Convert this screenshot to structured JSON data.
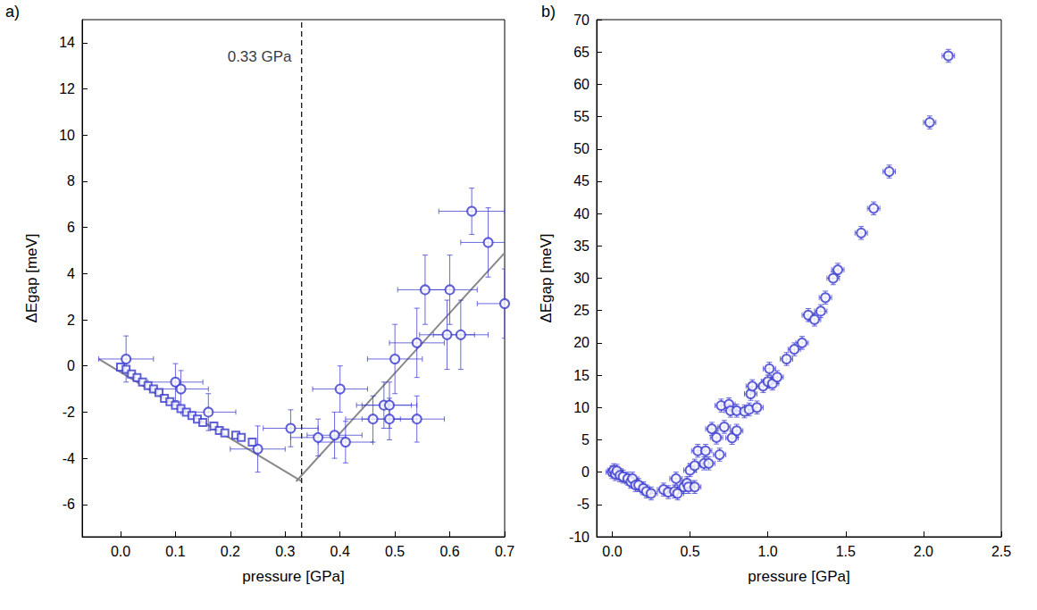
{
  "chart_data": [
    {
      "type": "scatter",
      "panel": "a)",
      "x_label": "pressure [GPa]",
      "y_label": "ΔEgap [meV]",
      "xlim": [
        -0.07,
        0.7
      ],
      "ylim": [
        -7.4,
        15
      ],
      "xticks": [
        {
          "value": 0,
          "label": "0.0"
        },
        {
          "value": 0.1,
          "label": "0.1"
        },
        {
          "value": 0.2,
          "label": "0.2"
        },
        {
          "value": 0.3,
          "label": "0.3"
        },
        {
          "value": 0.4,
          "label": "0.4"
        },
        {
          "value": 0.5,
          "label": "0.5"
        },
        {
          "value": 0.6,
          "label": "0.6"
        },
        {
          "value": 0.7,
          "label": "0.7"
        }
      ],
      "yticks": [
        -6,
        -4,
        -2,
        0,
        2,
        4,
        6,
        8,
        10,
        12,
        14
      ],
      "annotations": [
        {
          "text": "0.33 GPa",
          "x": 0.315,
          "y": 13.4
        }
      ],
      "series": [
        {
          "type": "scatter",
          "marker": "circle_open",
          "color": "#3a3ad0",
          "x": [
            0.01,
            0.1,
            0.11,
            0.16,
            0.25,
            0.31,
            0.36,
            0.39,
            0.4,
            0.41,
            0.46,
            0.48,
            0.49,
            0.49,
            0.5,
            0.54,
            0.54,
            0.555,
            0.595,
            0.6,
            0.62,
            0.64,
            0.67,
            0.7
          ],
          "values": [
            0.3,
            -0.7,
            -1.0,
            -2.0,
            -3.6,
            -2.7,
            -3.1,
            -3.0,
            -1.0,
            -3.3,
            -2.3,
            -1.7,
            -2.3,
            -1.7,
            0.3,
            1.0,
            -2.3,
            3.3,
            1.35,
            3.3,
            1.35,
            6.7,
            5.35,
            2.7
          ],
          "xerr": [
            0.05,
            0.05,
            0.05,
            0.05,
            0.05,
            0.05,
            0.05,
            0.05,
            0.05,
            0.05,
            0.05,
            0.05,
            0.05,
            0.05,
            0.05,
            0.05,
            0.05,
            0.05,
            0.05,
            0.05,
            0.05,
            0.06,
            0.05,
            0.05
          ],
          "yerr": [
            1.0,
            0.8,
            0.8,
            0.8,
            1.0,
            0.8,
            0.8,
            1.0,
            1.0,
            0.9,
            1.0,
            1.0,
            0.9,
            1.0,
            1.5,
            1.5,
            1.0,
            1.5,
            1.5,
            1.5,
            1.5,
            1.0,
            1.5,
            1.5
          ]
        },
        {
          "type": "scatter",
          "marker": "square_open",
          "color": "#3a3ad0",
          "x": [
            0.0,
            0.01,
            0.02,
            0.03,
            0.04,
            0.05,
            0.06,
            0.07,
            0.08,
            0.09,
            0.1,
            0.11,
            0.12,
            0.13,
            0.14,
            0.15,
            0.17,
            0.18,
            0.19,
            0.21,
            0.22,
            0.24
          ],
          "values": [
            -0.05,
            -0.15,
            -0.35,
            -0.5,
            -0.7,
            -0.85,
            -1.0,
            -1.15,
            -1.4,
            -1.55,
            -1.7,
            -1.85,
            -2.0,
            -2.15,
            -2.3,
            -2.45,
            -2.6,
            -2.8,
            -2.9,
            -3.0,
            -3.1,
            -3.3
          ]
        },
        {
          "type": "line",
          "line_style": "solid",
          "color": "#888888",
          "x": [
            -0.04,
            0.33
          ],
          "values": [
            0.3,
            -5.0
          ]
        },
        {
          "type": "line",
          "line_style": "solid",
          "color": "#888888",
          "x": [
            0.32,
            0.7
          ],
          "values": [
            -5.0,
            4.9
          ]
        },
        {
          "type": "line",
          "line_style": "dashed",
          "color": "#000000",
          "x": [
            0.33,
            0.33
          ],
          "values": [
            -7.4,
            15
          ]
        }
      ]
    },
    {
      "type": "scatter",
      "panel": "b)",
      "x_label": "pressure [GPa]",
      "y_label": "ΔEgap [meV]",
      "xlim": [
        -0.1,
        2.5
      ],
      "ylim": [
        -10,
        70
      ],
      "xticks": [
        {
          "value": 0,
          "label": "0.0"
        },
        {
          "value": 0.5,
          "label": "0.5"
        },
        {
          "value": 1,
          "label": "1.0"
        },
        {
          "value": 1.5,
          "label": "1.5"
        },
        {
          "value": 2,
          "label": "2.0"
        },
        {
          "value": 2.5,
          "label": "2.5"
        }
      ],
      "yticks": [
        -10,
        -5,
        0,
        5,
        10,
        15,
        20,
        25,
        30,
        35,
        40,
        45,
        50,
        55,
        60,
        65,
        70
      ],
      "series": [
        {
          "type": "scatter",
          "marker": "circle_open",
          "color": "#3a3ad0",
          "x": [
            0,
            0.01,
            0.02,
            0.03,
            0.05,
            0.07,
            0.1,
            0.12,
            0.13,
            0.15,
            0.17,
            0.2,
            0.22,
            0.25,
            0.33,
            0.36,
            0.4,
            0.41,
            0.42,
            0.46,
            0.48,
            0.49,
            0.5,
            0.53,
            0.53,
            0.55,
            0.59,
            0.6,
            0.62,
            0.64,
            0.67,
            0.69,
            0.7,
            0.72,
            0.75,
            0.76,
            0.77,
            0.8,
            0.8,
            0.85,
            0.88,
            0.89,
            0.9,
            0.93,
            0.97,
            1.0,
            1.01,
            1.03,
            1.06,
            1.12,
            1.17,
            1.22,
            1.26,
            1.3,
            1.34,
            1.37,
            1.42,
            1.45,
            1.6,
            1.68,
            1.78,
            2.04,
            2.16
          ],
          "values": [
            0,
            0.3,
            -0.3,
            0.2,
            -0.5,
            -0.7,
            -1.0,
            -1.5,
            -1.0,
            -2.0,
            -2.0,
            -2.5,
            -3.0,
            -3.3,
            -2.7,
            -3.1,
            -3.0,
            -1.0,
            -3.3,
            -2.3,
            -1.7,
            -2.3,
            0.3,
            1.0,
            -2.3,
            3.3,
            1.35,
            3.3,
            1.35,
            6.7,
            5.35,
            2.7,
            10.3,
            7.0,
            10.5,
            9.5,
            5.3,
            6.4,
            9.5,
            9.4,
            9.7,
            12.1,
            13.3,
            10.0,
            13.3,
            14.0,
            16.0,
            13.7,
            14.7,
            17.5,
            19.0,
            20.0,
            24.3,
            23.6,
            24.9,
            27.0,
            30.0,
            31.3,
            37.0,
            40.8,
            46.5,
            54.1,
            64.4
          ],
          "xerr": [
            0.04,
            0.04,
            0.04,
            0.04,
            0.04,
            0.04,
            0.04,
            0.04,
            0.04,
            0.04,
            0.04,
            0.04,
            0.04,
            0.04,
            0.04,
            0.04,
            0.04,
            0.04,
            0.04,
            0.04,
            0.04,
            0.04,
            0.04,
            0.04,
            0.04,
            0.04,
            0.04,
            0.04,
            0.04,
            0.04,
            0.04,
            0.04,
            0.04,
            0.04,
            0.04,
            0.04,
            0.04,
            0.04,
            0.04,
            0.04,
            0.04,
            0.04,
            0.04,
            0.04,
            0.04,
            0.04,
            0.04,
            0.04,
            0.04,
            0.04,
            0.04,
            0.04,
            0.04,
            0.04,
            0.04,
            0.04,
            0.04,
            0.04,
            0.04,
            0.04,
            0.04,
            0.04,
            0.04
          ],
          "yerr": [
            1.0,
            1.0,
            1.0,
            1.0,
            1.0,
            1.0,
            1.0,
            1.0,
            1.0,
            1.0,
            1.0,
            1.0,
            1.0,
            1.0,
            1.0,
            1.0,
            1.0,
            1.0,
            1.0,
            1.0,
            1.0,
            1.0,
            1.0,
            1.0,
            1.0,
            1.0,
            1.0,
            1.0,
            1.0,
            1.0,
            1.0,
            1.0,
            1.0,
            1.0,
            1.0,
            1.0,
            1.0,
            1.0,
            1.0,
            1.0,
            1.0,
            1.0,
            1.0,
            1.0,
            1.0,
            1.0,
            1.0,
            1.0,
            1.0,
            1.0,
            1.0,
            1.0,
            1.0,
            1.0,
            1.0,
            1.0,
            1.0,
            1.0,
            1.0,
            1.0,
            1.0,
            1.0,
            1.0
          ]
        }
      ]
    }
  ]
}
